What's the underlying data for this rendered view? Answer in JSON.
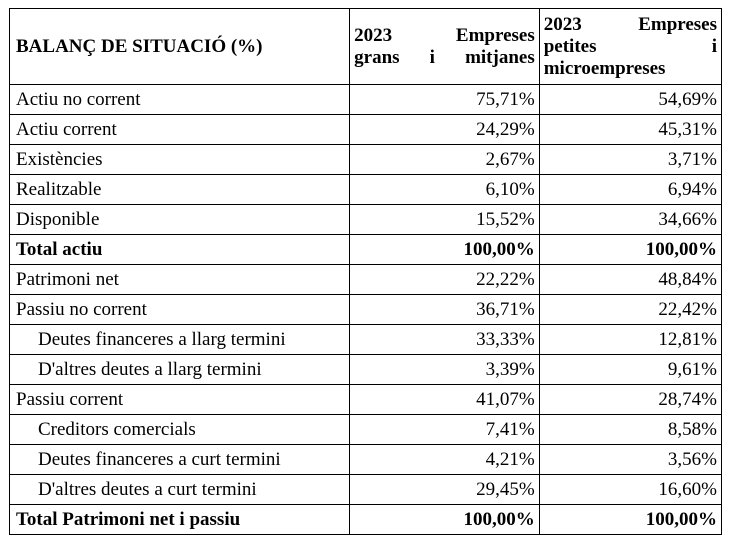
{
  "header": {
    "label": "BALANÇ DE SITUACIÓ (%)",
    "col_a_line1": "2023 Empreses",
    "col_a_line2": "grans i mitjanes",
    "col_b_line1": "2023 Empreses",
    "col_b_line2": "petites i",
    "col_b_line3": "microempreses"
  },
  "rows": [
    {
      "label": "Actiu no corrent",
      "a": "75,71%",
      "b": "54,69%"
    },
    {
      "label": "Actiu corrent",
      "a": "24,29%",
      "b": "45,31%"
    },
    {
      "label": "Existències",
      "a": "2,67%",
      "b": "3,71%"
    },
    {
      "label": "Realitzable",
      "a": "6,10%",
      "b": "6,94%"
    },
    {
      "label": "Disponible",
      "a": "15,52%",
      "b": "34,66%"
    },
    {
      "label": "Total actiu",
      "a": "100,00%",
      "b": "100,00%"
    },
    {
      "label": "Patrimoni net",
      "a": "22,22%",
      "b": "48,84%"
    },
    {
      "label": "Passiu no corrent",
      "a": "36,71%",
      "b": "22,42%"
    },
    {
      "label": "Deutes financeres a llarg termini",
      "a": "33,33%",
      "b": "12,81%"
    },
    {
      "label": "D'altres deutes a llarg termini",
      "a": "3,39%",
      "b": "9,61%"
    },
    {
      "label": "Passiu corrent",
      "a": "41,07%",
      "b": "28,74%"
    },
    {
      "label": "Creditors comercials",
      "a": "7,41%",
      "b": "8,58%"
    },
    {
      "label": "Deutes financeres a curt termini",
      "a": "4,21%",
      "b": "3,56%"
    },
    {
      "label": "D'altres deutes a curt termini",
      "a": "29,45%",
      "b": "16,60%"
    },
    {
      "label": "Total Patrimoni net i passiu",
      "a": "100,00%",
      "b": "100,00%"
    }
  ]
}
